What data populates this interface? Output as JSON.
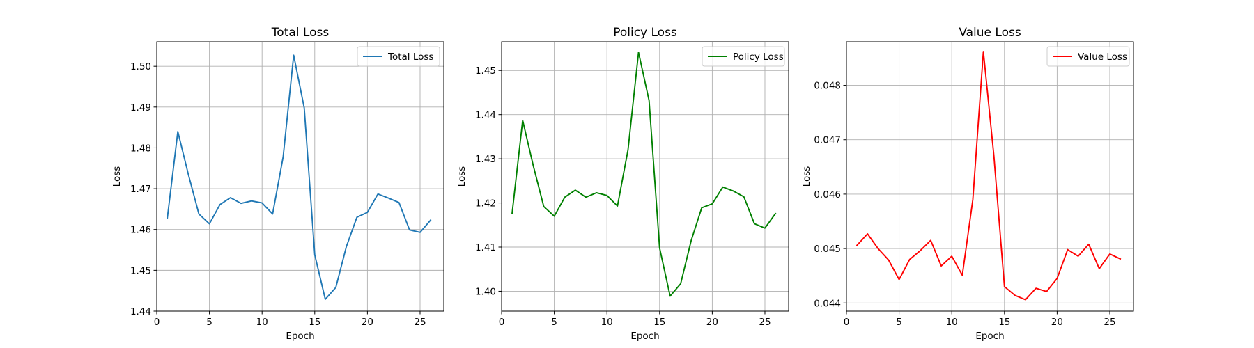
{
  "chart_data": [
    {
      "type": "line",
      "title": "Total Loss",
      "xlabel": "Epoch",
      "ylabel": "Loss",
      "xlim": [
        0,
        27.25
      ],
      "ylim": [
        1.44,
        1.506
      ],
      "xticks": [
        0,
        5,
        10,
        15,
        20,
        25
      ],
      "yticks": [
        1.44,
        1.45,
        1.46,
        1.47,
        1.48,
        1.49,
        1.5
      ],
      "ytick_labels": [
        "1.44",
        "1.45",
        "1.46",
        "1.47",
        "1.48",
        "1.49",
        "1.50"
      ],
      "grid": true,
      "legend_position": "top-right",
      "series": [
        {
          "name": "Total Loss",
          "color": "#1f77b4",
          "x": [
            1,
            2,
            3,
            4,
            5,
            6,
            7,
            8,
            9,
            10,
            11,
            12,
            13,
            14,
            15,
            16,
            17,
            18,
            19,
            20,
            21,
            22,
            23,
            24,
            25,
            26
          ],
          "values": [
            1.4627,
            1.484,
            1.4735,
            1.4638,
            1.4614,
            1.4661,
            1.4678,
            1.4664,
            1.467,
            1.4665,
            1.4638,
            1.4778,
            1.5027,
            1.4898,
            1.4538,
            1.4429,
            1.4458,
            1.4558,
            1.463,
            1.4642,
            1.4687,
            1.4677,
            1.4666,
            1.4599,
            1.4593,
            1.4623
          ]
        }
      ]
    },
    {
      "type": "line",
      "title": "Policy Loss",
      "xlabel": "Epoch",
      "ylabel": "Loss",
      "xlim": [
        0,
        27.25
      ],
      "ylim": [
        1.3955,
        1.4565
      ],
      "xticks": [
        0,
        5,
        10,
        15,
        20,
        25
      ],
      "yticks": [
        1.4,
        1.41,
        1.42,
        1.43,
        1.44,
        1.45
      ],
      "ytick_labels": [
        "1.40",
        "1.41",
        "1.42",
        "1.43",
        "1.44",
        "1.45"
      ],
      "grid": true,
      "legend_position": "top-right",
      "series": [
        {
          "name": "Policy Loss",
          "color": "#008000",
          "x": [
            1,
            2,
            3,
            4,
            5,
            6,
            7,
            8,
            9,
            10,
            11,
            12,
            13,
            14,
            15,
            16,
            17,
            18,
            19,
            20,
            21,
            22,
            23,
            24,
            25,
            26
          ],
          "values": [
            1.4177,
            1.4387,
            1.4285,
            1.4192,
            1.417,
            1.4213,
            1.4229,
            1.4213,
            1.4223,
            1.4217,
            1.4193,
            1.432,
            1.4541,
            1.4432,
            1.4098,
            1.3989,
            1.4017,
            1.4115,
            1.4189,
            1.4198,
            1.4236,
            1.4227,
            1.4214,
            1.4153,
            1.4143,
            1.4176
          ]
        }
      ]
    },
    {
      "type": "line",
      "title": "Value Loss",
      "xlabel": "Epoch",
      "ylabel": "Loss",
      "xlim": [
        0,
        27.25
      ],
      "ylim": [
        0.04385,
        0.0488
      ],
      "xticks": [
        0,
        5,
        10,
        15,
        20,
        25
      ],
      "yticks": [
        0.044,
        0.045,
        0.046,
        0.047,
        0.048
      ],
      "ytick_labels": [
        "0.044",
        "0.045",
        "0.046",
        "0.047",
        "0.048"
      ],
      "grid": true,
      "legend_position": "top-right",
      "series": [
        {
          "name": "Value Loss",
          "color": "#ff0000",
          "x": [
            1,
            2,
            3,
            4,
            5,
            6,
            7,
            8,
            9,
            10,
            11,
            12,
            13,
            14,
            15,
            16,
            17,
            18,
            19,
            20,
            21,
            22,
            23,
            24,
            25,
            26
          ],
          "values": [
            0.04506,
            0.04527,
            0.045,
            0.04479,
            0.04443,
            0.0448,
            0.04496,
            0.04515,
            0.04468,
            0.04486,
            0.04451,
            0.0459,
            0.04862,
            0.0467,
            0.0443,
            0.04414,
            0.04406,
            0.04427,
            0.04421,
            0.04445,
            0.04498,
            0.04486,
            0.04508,
            0.04463,
            0.0449,
            0.04481
          ]
        }
      ]
    }
  ]
}
